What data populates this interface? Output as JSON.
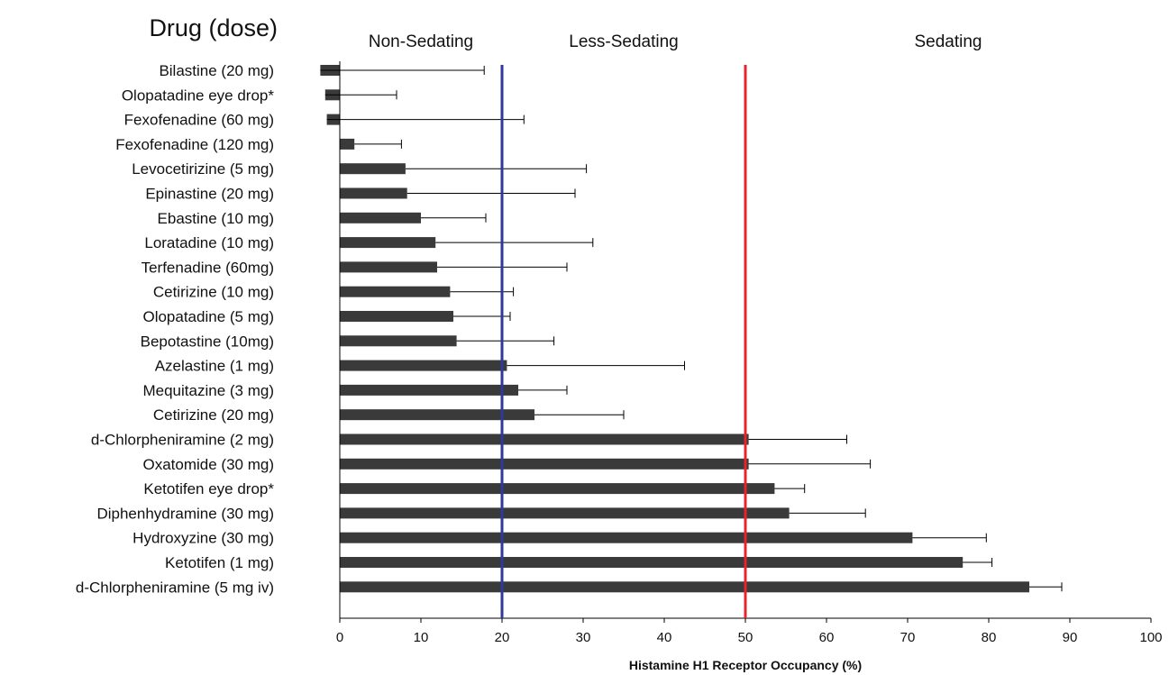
{
  "chart_data": {
    "type": "bar",
    "orientation": "horizontal",
    "title": "",
    "category_axis_title": "Drug (dose)",
    "xlabel": "Histamine H1 Receptor Occupancy (%)",
    "xlim": [
      0,
      100
    ],
    "xticks": [
      "0",
      "10",
      "20",
      "30",
      "40",
      "50",
      "60",
      "70",
      "80",
      "90",
      "100"
    ],
    "grid": false,
    "bar_color": "#3a3a3a",
    "categories": [
      "Bilastine (20 mg)",
      "Olopatadine eye drop*",
      "Fexofenadine (60 mg)",
      "Fexofenadine (120 mg)",
      "Levocetirizine (5 mg)",
      "Epinastine (20 mg)",
      "Ebastine (10 mg)",
      "Loratadine (10 mg)",
      "Terfenadine (60mg)",
      "Cetirizine (10 mg)",
      "Olopatadine (5 mg)",
      "Bepotastine (10mg)",
      "Azelastine (1 mg)",
      "Mequitazine (3 mg)",
      "Cetirizine (20 mg)",
      "d-Chlorpheniramine (2 mg)",
      "Oxatomide (30 mg)",
      "Ketotifen eye drop*",
      "Diphenhydramine (30 mg)",
      "Hydroxyzine (30 mg)",
      "Ketotifen (1 mg)",
      "d-Chlorpheniramine (5 mg iv)"
    ],
    "values": [
      -2.4,
      -1.8,
      -1.6,
      1.8,
      8.1,
      8.3,
      10.0,
      11.8,
      12.0,
      13.6,
      14.0,
      14.4,
      20.6,
      22.0,
      24.0,
      50.4,
      50.4,
      53.6,
      55.4,
      70.6,
      76.8,
      85.0
    ],
    "error_upper": [
      20.2,
      8.8,
      24.3,
      5.8,
      22.3,
      20.7,
      8.0,
      19.4,
      16.0,
      7.8,
      7.0,
      12.0,
      21.9,
      6.0,
      11.0,
      12.1,
      15.0,
      3.7,
      9.4,
      9.1,
      3.6,
      4.0
    ],
    "thresholds": [
      {
        "value": 20,
        "color": "#2b3a9b"
      },
      {
        "value": 50,
        "color": "#e8232c"
      }
    ],
    "zones": [
      {
        "label": "Non-Sedating",
        "center": 10
      },
      {
        "label": "Less-Sedating",
        "center": 35
      },
      {
        "label": "Sedating",
        "center": 75
      }
    ]
  }
}
